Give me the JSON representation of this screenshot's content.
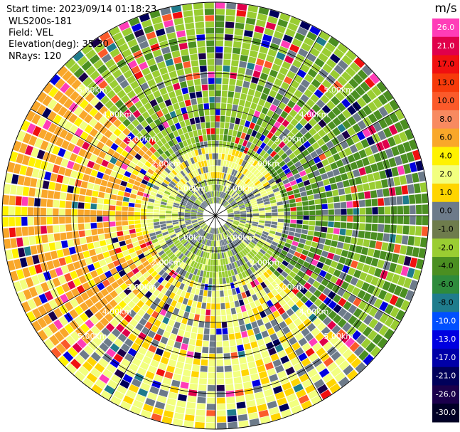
{
  "header": {
    "start_time": "Start time: 2023/09/14 01:18:23",
    "instrument": "WLS200s-181",
    "field": "Field: VEL",
    "elevation": "Elevation(deg): 35.30",
    "nrays": "NRays: 120"
  },
  "chart_data": {
    "type": "heatmap",
    "projection": "polar-ppi",
    "field": "VEL",
    "units": "m/s",
    "nrays": 120,
    "range_max_km": 6.0,
    "range_rings_km": [
      1,
      2,
      3,
      4,
      5
    ],
    "range_labels": [
      "1.00km",
      "2.00km",
      "3.00km",
      "4.00km",
      "5.00km"
    ],
    "spokes_deg": [
      0,
      30,
      60,
      90,
      120,
      150,
      180,
      210,
      240,
      270,
      300,
      330
    ],
    "colorbar": {
      "label": "m/s",
      "ticks": [
        "26.0",
        "21.0",
        "17.0",
        "13.0",
        "10.0",
        "8.0",
        "6.0",
        "4.0",
        "2.0",
        "1.0",
        "0.0",
        "-1.0",
        "-2.0",
        "-4.0",
        "-6.0",
        "-8.0",
        "-10.0",
        "-13.0",
        "-17.0",
        "-21.0",
        "-26.0",
        "-30.0"
      ],
      "colors": [
        "#ff3db8",
        "#e0004b",
        "#f01010",
        "#f63a0a",
        "#fb5a2a",
        "#f88a60",
        "#f9a72a",
        "#fff200",
        "#f2ff7f",
        "#ffd500",
        "#6d7b8a",
        "#6e7c4c",
        "#9acd32",
        "#4b8f21",
        "#2e8b3c",
        "#1f7c8c",
        "#0050ff",
        "#0000e0",
        "#0000a8",
        "#00005a",
        "#1a004b",
        "#000026"
      ]
    },
    "pattern": {
      "near_ring_km": [
        0.0,
        1.0
      ],
      "inner_ring_km": [
        1.0,
        2.0
      ],
      "outer_ring_km": [
        2.0,
        6.0
      ],
      "north_dominant": "-2.0",
      "south_dominant": "2.0",
      "west_dominant": "6.0",
      "east_dominant": "-4.0"
    }
  }
}
